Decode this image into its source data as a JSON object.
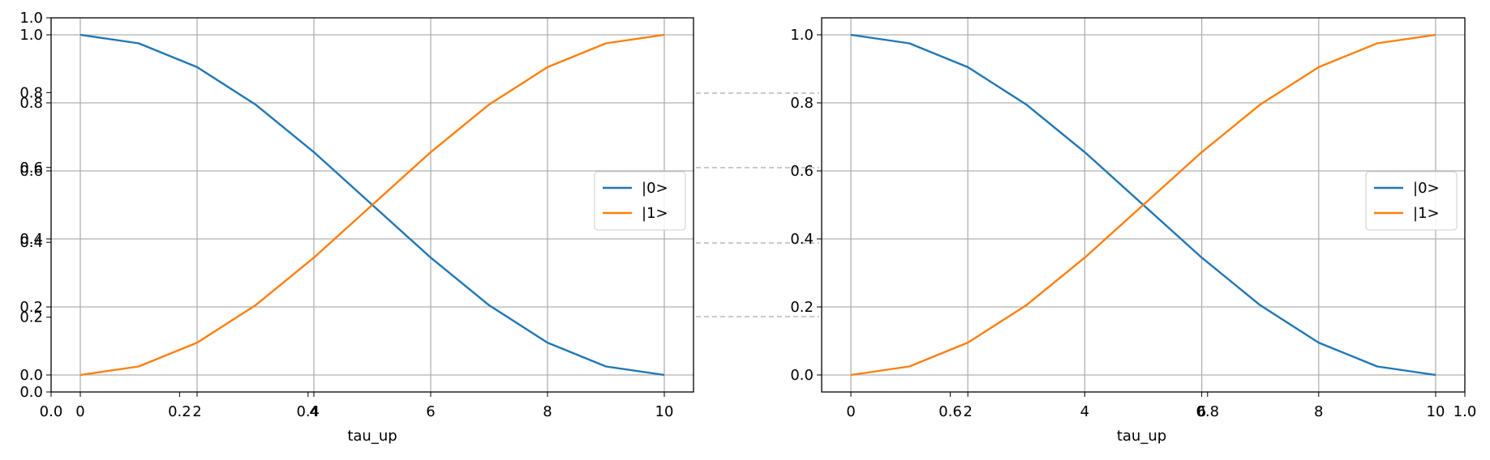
{
  "colors": {
    "series0": "#1f77b4",
    "series1": "#ff7f0e",
    "grid": "#b0b0b0",
    "axis": "#000000",
    "connector": "#aaaaaa"
  },
  "chart_data": [
    {
      "type": "line",
      "xlabel": "tau_up",
      "ylabel": "",
      "xlim": [
        -0.5,
        10.5
      ],
      "ylim": [
        -0.05,
        1.05
      ],
      "xticks": [
        "0",
        "2",
        "4",
        "6",
        "8",
        "10"
      ],
      "yticks": [
        "0.0",
        "0.2",
        "0.4",
        "0.6",
        "0.8",
        "1.0"
      ],
      "grid": true,
      "legend": "center-right",
      "series": [
        {
          "name": "|0>",
          "x": [
            0,
            1,
            2,
            3,
            4,
            5,
            6,
            7,
            8,
            9,
            10
          ],
          "y": [
            1.0,
            0.975,
            0.905,
            0.795,
            0.655,
            0.5,
            0.345,
            0.205,
            0.095,
            0.025,
            0.0
          ]
        },
        {
          "name": "|1>",
          "x": [
            0,
            1,
            2,
            3,
            4,
            5,
            6,
            7,
            8,
            9,
            10
          ],
          "y": [
            0.0,
            0.025,
            0.095,
            0.205,
            0.345,
            0.5,
            0.655,
            0.795,
            0.905,
            0.975,
            1.0
          ]
        }
      ],
      "overlay_axis": {
        "xticks": [
          "0.0",
          "0.2",
          "0.4"
        ],
        "yticks": [
          "0.0",
          "0.2",
          "0.4",
          "0.6",
          "0.8",
          "1.0"
        ]
      }
    },
    {
      "type": "line",
      "xlabel": "tau_up",
      "ylabel": "",
      "xlim": [
        -0.5,
        10.5
      ],
      "ylim": [
        -0.05,
        1.05
      ],
      "xticks": [
        "0",
        "2",
        "4",
        "6",
        "8",
        "10"
      ],
      "yticks": [
        "0.0",
        "0.2",
        "0.4",
        "0.6",
        "0.8",
        "1.0"
      ],
      "grid": true,
      "legend": "center-right",
      "series": [
        {
          "name": "|0>",
          "x": [
            0,
            1,
            2,
            3,
            4,
            5,
            6,
            7,
            8,
            9,
            10
          ],
          "y": [
            1.0,
            0.975,
            0.905,
            0.795,
            0.655,
            0.5,
            0.345,
            0.205,
            0.095,
            0.025,
            0.0
          ]
        },
        {
          "name": "|1>",
          "x": [
            0,
            1,
            2,
            3,
            4,
            5,
            6,
            7,
            8,
            9,
            10
          ],
          "y": [
            0.0,
            0.025,
            0.095,
            0.205,
            0.345,
            0.5,
            0.655,
            0.795,
            0.905,
            0.975,
            1.0
          ]
        }
      ],
      "overlay_axis": {
        "xticks": [
          "0.6",
          "0.8",
          "1.0"
        ],
        "yticks": []
      }
    }
  ]
}
